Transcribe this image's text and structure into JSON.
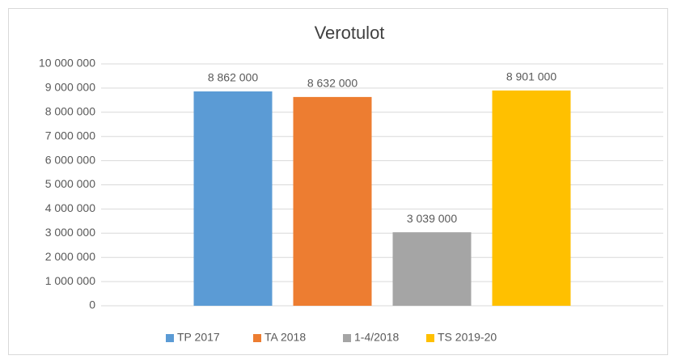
{
  "chart_data": {
    "type": "bar",
    "title": "Verotulot",
    "categories": [
      null
    ],
    "series": [
      {
        "name": "TP 2017",
        "color": "#5b9bd5",
        "values": [
          8862000
        ],
        "value_labels": [
          "8 862 000"
        ]
      },
      {
        "name": "TA 2018",
        "color": "#ed7d31",
        "values": [
          8632000
        ],
        "value_labels": [
          "8 632 000"
        ]
      },
      {
        "name": "1-4/2018",
        "color": "#a5a5a5",
        "values": [
          3039000
        ],
        "value_labels": [
          "3 039 000"
        ]
      },
      {
        "name": "TS 2019-20",
        "color": "#ffc000",
        "values": [
          8901000
        ],
        "value_labels": [
          "8 901 000"
        ]
      }
    ],
    "ylim": [
      0,
      10000000
    ],
    "yticks": [
      0,
      {
        "value": 1000000,
        "label": "1 000 000"
      },
      {
        "value": 2000000,
        "label": "2 000 000"
      },
      {
        "value": 3000000,
        "label": "3 000 000"
      },
      {
        "value": 4000000,
        "label": "4 000 000"
      },
      {
        "value": 5000000,
        "label": "5 000 000"
      },
      {
        "value": 6000000,
        "label": "6 000 000"
      },
      {
        "value": 7000000,
        "label": "7 000 000"
      },
      {
        "value": 8000000,
        "label": "8 000 000"
      },
      {
        "value": 9000000,
        "label": "9 000 000"
      },
      {
        "value": 10000000,
        "label": "10 000 000"
      }
    ],
    "grid": true,
    "legend": "bottom"
  }
}
